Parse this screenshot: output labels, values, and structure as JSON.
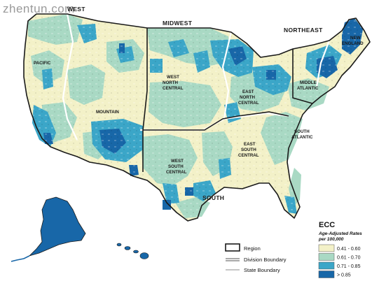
{
  "watermark": "zhentun.com",
  "regions": {
    "west": "WEST",
    "midwest": "MIDWEST",
    "northeast": "NORTHEAST",
    "south": "SOUTH"
  },
  "divisions": {
    "pacific": "PACIFIC",
    "mountain": "MOUNTAIN",
    "wnc_1": "WEST",
    "wnc_2": "NORTH",
    "wnc_3": "CENTRAL",
    "enc_1": "EAST",
    "enc_2": "NORTH",
    "enc_3": "CENTRAL",
    "ne_1": "NEW",
    "ne_2": "ENGLAND",
    "ma_1": "MIDDLE",
    "ma_2": "ATLANTIC",
    "sa_1": "SOUTH",
    "sa_2": "ATLANTIC",
    "esc_1": "EAST",
    "esc_2": "SOUTH",
    "esc_3": "CENTRAL",
    "wsc_1": "WEST",
    "wsc_2": "SOUTH",
    "wsc_3": "CENTRAL"
  },
  "boundary_key": {
    "region": "Region",
    "division": "Division Boundary",
    "state": "State Boundary"
  },
  "legend": {
    "title": "ECC",
    "subtitle_1": "Age-Adjusted Rates",
    "subtitle_2": "per 100,000",
    "classes": [
      {
        "label": "0.41 - 0.60",
        "color": "#f3f1c8"
      },
      {
        "label": "0.61 - 0.70",
        "color": "#a9d9c4"
      },
      {
        "label": "0.71 - 0.85",
        "color": "#3ba6c8"
      },
      {
        "label": "> 0.85",
        "color": "#1867a8"
      }
    ]
  },
  "colors": {
    "lowest": "#f3f1c8",
    "low": "#a9d9c4",
    "high": "#3ba6c8",
    "highest": "#1867a8",
    "region_line": "#1a1a1a",
    "division_line": "#ffffff"
  }
}
